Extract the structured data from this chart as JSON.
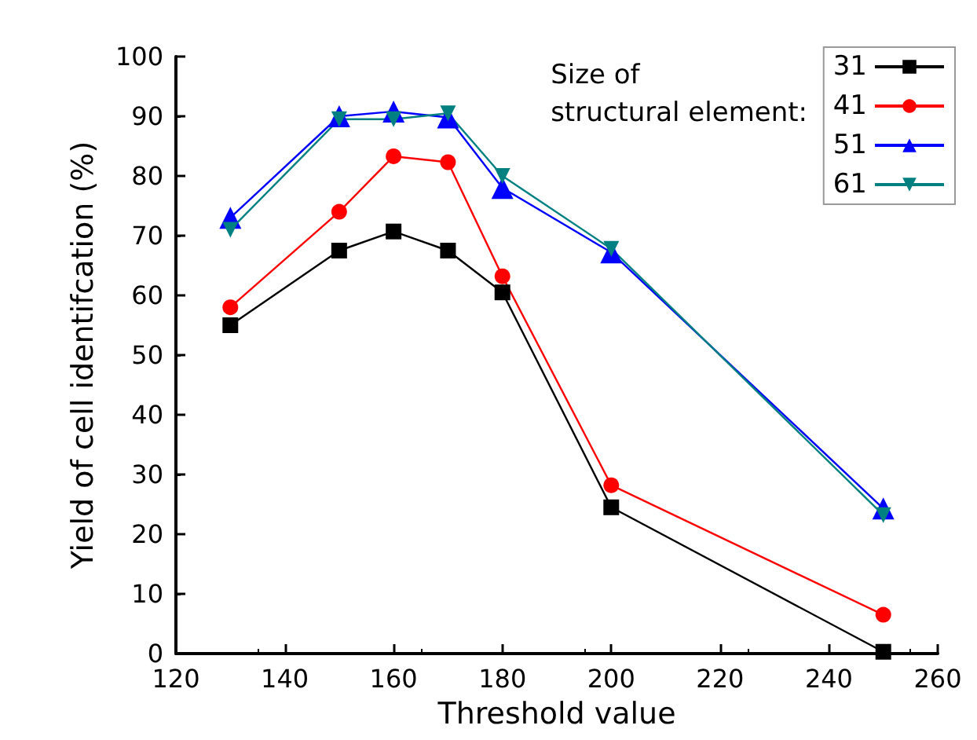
{
  "chart_data": {
    "type": "line",
    "xlabel": "Threshold value",
    "ylabel": "Yield of cell identifcation (%)",
    "annotations": [
      "Size of\nstructural element:"
    ],
    "x": [
      130,
      150,
      160,
      170,
      180,
      200,
      250
    ],
    "series": [
      {
        "name": "31",
        "color": "#000000",
        "marker": "square",
        "values": [
          55,
          67.5,
          70.7,
          67.5,
          60.5,
          24.5,
          0.3
        ]
      },
      {
        "name": "41",
        "color": "#ff0000",
        "marker": "circle",
        "values": [
          58,
          74,
          83.3,
          82.3,
          63.2,
          28.2,
          6.5
        ]
      },
      {
        "name": "51",
        "color": "#0000ff",
        "marker": "triangle",
        "values": [
          73,
          90,
          90.8,
          89.8,
          78,
          67.2,
          24.3
        ]
      },
      {
        "name": "61",
        "color": "#008080",
        "marker": "triangle-down",
        "values": [
          71,
          89.5,
          89.5,
          90.5,
          80,
          67.8,
          23.2
        ]
      }
    ],
    "xlim": [
      120,
      260
    ],
    "xticks": [
      120,
      140,
      160,
      180,
      200,
      220,
      240,
      260
    ],
    "ylim": [
      0,
      100
    ],
    "yticks": [
      0,
      10,
      20,
      30,
      40,
      50,
      60,
      70,
      80,
      90,
      100
    ],
    "grid": false,
    "legend": "top right",
    "line_style": "solid"
  }
}
